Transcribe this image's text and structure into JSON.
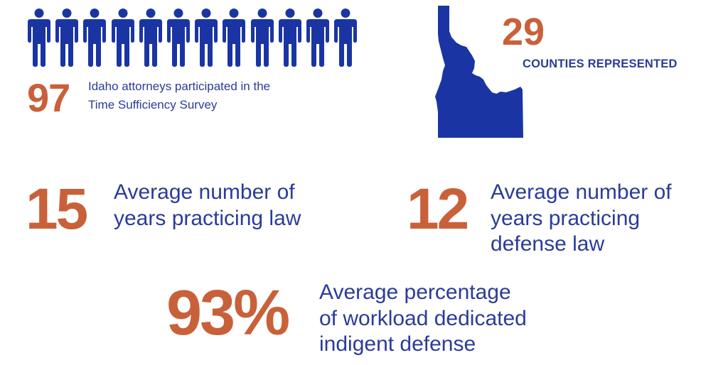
{
  "colors": {
    "accent_orange": "#c8613a",
    "primary_blue": "#1a35a3",
    "text_blue": "#2b3b9a",
    "background": "#ffffff"
  },
  "icons": {
    "person": "person-icon",
    "state_map": "idaho-map-icon"
  },
  "people_icon_count": 12,
  "stats": {
    "attorneys": {
      "value": "97",
      "description_line1": "Idaho attorneys participated in the",
      "description_line2": "Time Sufficiency Survey"
    },
    "counties": {
      "value": "29",
      "label": "COUNTIES REPRESENTED"
    },
    "years_practicing": {
      "value": "15",
      "description_line1": "Average number of",
      "description_line2": "years practicing law"
    },
    "years_defense": {
      "value": "12",
      "description_line1": "Average number of",
      "description_line2": "years practicing",
      "description_line3": "defense law"
    },
    "workload": {
      "value": "93%",
      "description_line1": "Average percentage",
      "description_line2": "of workload dedicated",
      "description_line3": "indigent defense"
    }
  }
}
